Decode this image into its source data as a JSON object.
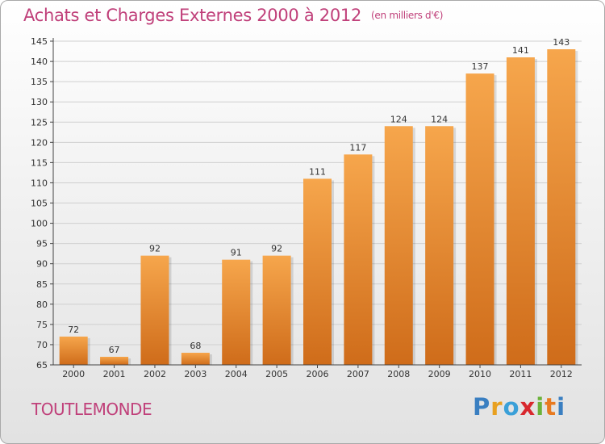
{
  "title": "Achats et Charges Externes 2000 à 2012",
  "unit": "(en milliers d'€)",
  "place": "TOUTLEMONDE",
  "logo": {
    "letters": [
      "P",
      "r",
      "o",
      "x",
      "i",
      "t",
      "i"
    ],
    "colors": [
      "#3a7fc1",
      "#e8a020",
      "#3aa0d8",
      "#d8282e",
      "#6bb23a",
      "#e87a20",
      "#3a7fc1"
    ]
  },
  "colors": {
    "bar_light": "#f6a64c",
    "bar_dark": "#cf6c1a",
    "grid": "#cfcfcf",
    "axis": "#444444",
    "text": "#333333",
    "accent": "#c0407a"
  },
  "chart_data": {
    "type": "bar",
    "categories": [
      "2000",
      "2001",
      "2002",
      "2003",
      "2004",
      "2005",
      "2006",
      "2007",
      "2008",
      "2009",
      "2010",
      "2011",
      "2012"
    ],
    "values": [
      72,
      67,
      92,
      68,
      91,
      92,
      111,
      117,
      124,
      124,
      137,
      141,
      143
    ],
    "ylim": [
      65,
      145
    ],
    "yticks": [
      65,
      70,
      75,
      80,
      85,
      90,
      95,
      100,
      105,
      110,
      115,
      120,
      125,
      130,
      135,
      140,
      145
    ],
    "xlabel": "",
    "ylabel": "",
    "grid": true
  }
}
